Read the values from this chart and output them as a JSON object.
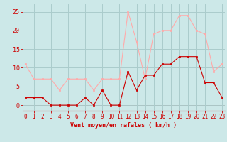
{
  "x": [
    0,
    1,
    2,
    3,
    4,
    5,
    6,
    7,
    8,
    9,
    10,
    11,
    12,
    13,
    14,
    15,
    16,
    17,
    18,
    19,
    20,
    21,
    22,
    23
  ],
  "y_mean": [
    2,
    2,
    2,
    0,
    0,
    0,
    0,
    2,
    0,
    4,
    0,
    0,
    9,
    4,
    8,
    8,
    11,
    11,
    13,
    13,
    13,
    6,
    6,
    2
  ],
  "y_gust": [
    11,
    7,
    7,
    7,
    4,
    7,
    7,
    7,
    4,
    7,
    7,
    7,
    25,
    17,
    7,
    19,
    20,
    20,
    24,
    24,
    20,
    19,
    9,
    11
  ],
  "bg_color": "#cce8e8",
  "grid_color": "#aacccc",
  "line_color_mean": "#cc0000",
  "line_color_gust": "#ffaaaa",
  "marker_color_mean": "#cc0000",
  "marker_color_gust": "#ffaaaa",
  "xlabel": "Vent moyen/en rafales ( km/h )",
  "ylabel_ticks": [
    0,
    5,
    10,
    15,
    20,
    25
  ],
  "xlim": [
    -0.3,
    23.3
  ],
  "ylim": [
    -1.5,
    27
  ],
  "xlabel_fontsize": 6.0,
  "tick_fontsize": 5.5,
  "ytick_fontsize": 6.0
}
